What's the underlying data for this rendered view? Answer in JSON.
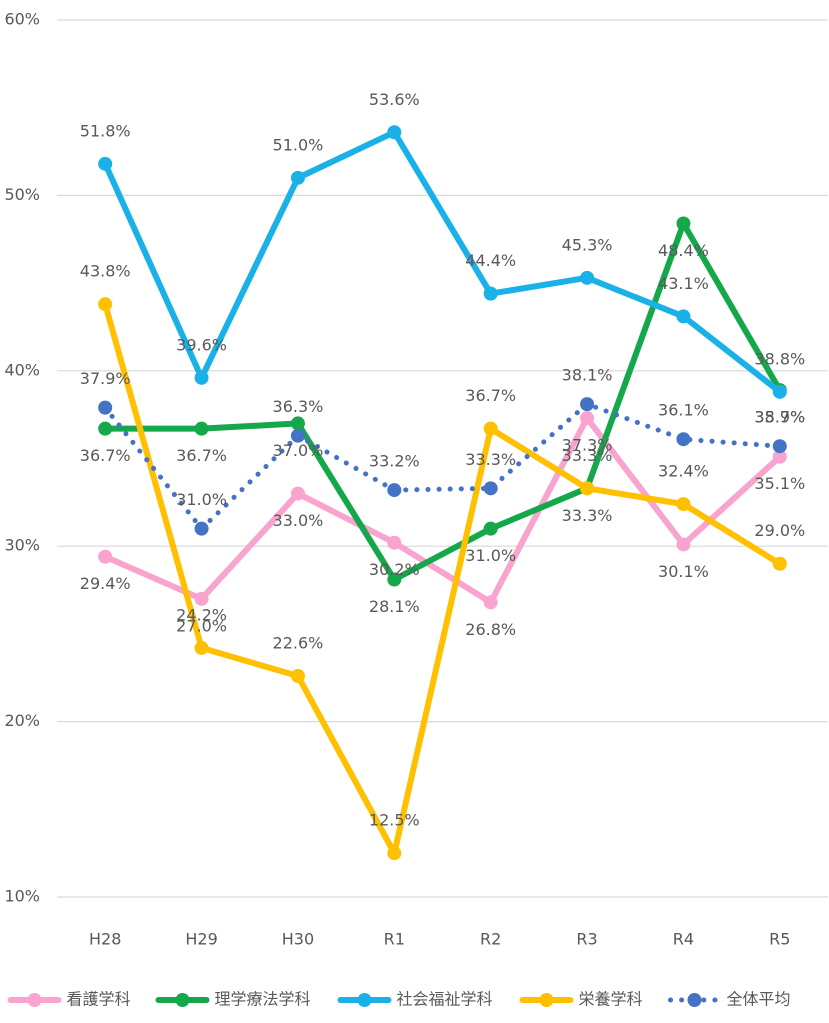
{
  "chart_data": {
    "type": "line",
    "categories": [
      "H28",
      "H29",
      "H30",
      "R1",
      "R2",
      "R3",
      "R4",
      "R5"
    ],
    "ylim": [
      10,
      60
    ],
    "yticks": [
      {
        "value": 10,
        "label": "10%"
      },
      {
        "value": 20,
        "label": "20%"
      },
      {
        "value": 30,
        "label": "30%"
      },
      {
        "value": 40,
        "label": "40%"
      },
      {
        "value": 50,
        "label": "50%"
      },
      {
        "value": 60,
        "label": "60%"
      }
    ],
    "grid": true,
    "legend": "bottom",
    "series": [
      {
        "name": "看護学科",
        "color": "#f9a3cf",
        "values": [
          29.4,
          27.0,
          33.0,
          30.2,
          26.8,
          37.3,
          30.1,
          35.1
        ],
        "value_labels": [
          "29.4%",
          "27.0%",
          "33.0%",
          "30.2%",
          "26.8%",
          "37.3%",
          "30.1%",
          "35.1%"
        ]
      },
      {
        "name": "理学療法学科",
        "color": "#15a84a",
        "values": [
          36.7,
          36.7,
          37.0,
          28.1,
          31.0,
          33.3,
          48.4,
          38.9
        ],
        "value_labels": [
          "36.7%",
          "36.7%",
          "37.0%",
          "28.1%",
          "31.0%",
          "33.3%",
          "48.4%",
          "38.9%"
        ]
      },
      {
        "name": "社会福祉学科",
        "color": "#1ab0e8",
        "values": [
          51.8,
          39.6,
          51.0,
          53.6,
          44.4,
          45.3,
          43.1,
          38.8
        ],
        "value_labels": [
          "51.8%",
          "39.6%",
          "51.0%",
          "53.6%",
          "44.4%",
          "45.3%",
          "43.1%",
          "38.8%"
        ]
      },
      {
        "name": "栄養学科",
        "color": "#ffc000",
        "values": [
          43.8,
          24.2,
          22.6,
          12.5,
          36.7,
          33.3,
          32.4,
          29.0
        ],
        "value_labels": [
          "43.8%",
          "24.2%",
          "22.6%",
          "12.5%",
          "36.7%",
          "33.3%",
          "32.4%",
          "29.0%"
        ]
      },
      {
        "name": "全体平均",
        "color": "#4472c4",
        "dotted": true,
        "values": [
          37.9,
          31.0,
          36.3,
          33.2,
          33.3,
          38.1,
          36.1,
          35.7
        ],
        "value_labels": [
          "37.9%",
          "31.0%",
          "36.3%",
          "33.2%",
          "33.3%",
          "38.1%",
          "36.1%",
          "35.7%"
        ]
      }
    ]
  }
}
